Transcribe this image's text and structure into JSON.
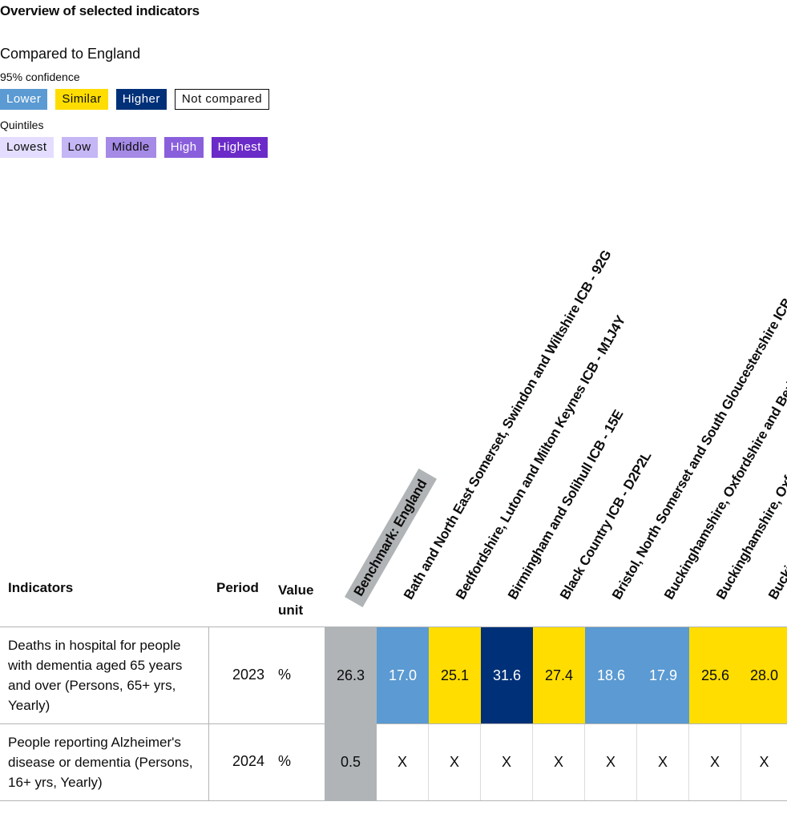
{
  "page": {
    "title": "Overview of selected indicators",
    "compared_to": "Compared to England",
    "confidence_label": "95% confidence",
    "quintiles_label": "Quintiles"
  },
  "key_confidence": [
    {
      "label": "Lower",
      "color": "#5b9ad2"
    },
    {
      "label": "Similar",
      "color": "#ffdd00"
    },
    {
      "label": "Higher",
      "color": "#003078"
    },
    {
      "label": "Not compared",
      "color": "#ffffff"
    }
  ],
  "key_quintiles": [
    {
      "label": "Lowest",
      "color": "#e4ddff"
    },
    {
      "label": "Low",
      "color": "#c5b6f5"
    },
    {
      "label": "Middle",
      "color": "#a58ae6"
    },
    {
      "label": "High",
      "color": "#8a5fdc"
    },
    {
      "label": "Highest",
      "color": "#6b2bc8"
    }
  ],
  "table": {
    "headers": {
      "indicators": "Indicators",
      "period": "Period",
      "value_unit": "Value unit",
      "benchmark": "Benchmark: England"
    },
    "areas": [
      "Bath and North East Somerset, Swindon and Wiltshire ICB - 92G",
      "Bedfordshire, Luton and Milton Keynes ICB - M1J4Y",
      "Birmingham and Solihull ICB - 15E",
      "Black Country ICB - D2P2L",
      "Bristol, North Somerset and South Gloucestershire ICB",
      "Buckinghamshire, Oxfordshire and Berkshire West ICB",
      "Buckinghamshire, Oxfordshire and Berkshire West ICB",
      "Buckinghamshire, Oxfordshire and Berkshire West ICB"
    ],
    "rows": [
      {
        "indicator": "Deaths in hospital for people with dementia aged 65 years and over (Persons, 65+ yrs, Yearly)",
        "period": "2023",
        "unit": "%",
        "benchmark": "26.3",
        "values": [
          {
            "value": "17.0",
            "status": "lower"
          },
          {
            "value": "25.1",
            "status": "similar"
          },
          {
            "value": "31.6",
            "status": "higher"
          },
          {
            "value": "27.4",
            "status": "similar"
          },
          {
            "value": "18.6",
            "status": "lower"
          },
          {
            "value": "17.9",
            "status": "lower"
          },
          {
            "value": "25.6",
            "status": "similar"
          },
          {
            "value": "28.0",
            "status": "similar"
          }
        ]
      },
      {
        "indicator": "People reporting Alzheimer's disease or dementia (Persons, 16+ yrs, Yearly)",
        "period": "2024",
        "unit": "%",
        "benchmark": "0.5",
        "values": [
          {
            "value": "X",
            "status": "nc"
          },
          {
            "value": "X",
            "status": "nc"
          },
          {
            "value": "X",
            "status": "nc"
          },
          {
            "value": "X",
            "status": "nc"
          },
          {
            "value": "X",
            "status": "nc"
          },
          {
            "value": "X",
            "status": "nc"
          },
          {
            "value": "X",
            "status": "nc"
          },
          {
            "value": "X",
            "status": "nc"
          }
        ]
      }
    ]
  }
}
